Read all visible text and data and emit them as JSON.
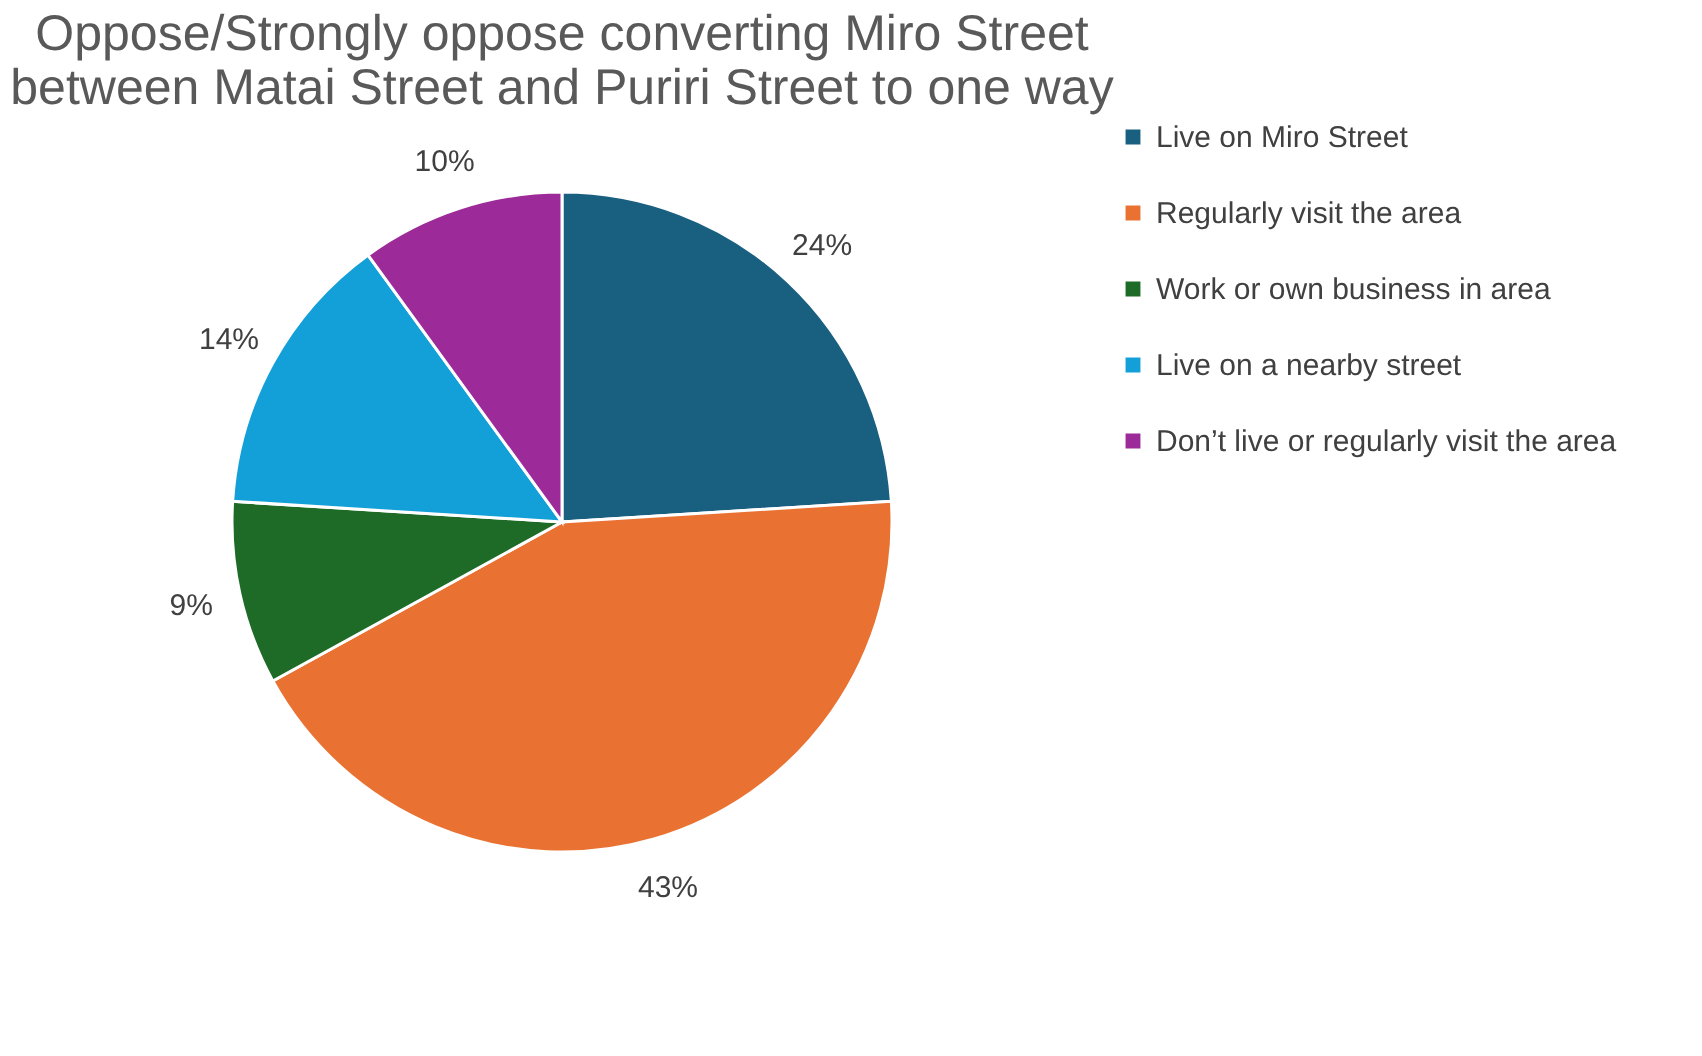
{
  "chart_data": {
    "type": "pie",
    "title": "Oppose/Strongly oppose converting Miro Street between Matai Street and Puriri Street to one way",
    "categories": [
      "Live on Miro Street",
      "Regularly visit the area",
      "Work or own business in area",
      "Live on a nearby street",
      "Don’t live or regularly visit the area"
    ],
    "values": [
      24,
      43,
      9,
      14,
      10
    ],
    "colors": [
      "#185f80",
      "#e97232",
      "#1e6b27",
      "#139fd8",
      "#9c2a98"
    ],
    "value_labels": [
      "24%",
      "43%",
      "9%",
      "14%",
      "10%"
    ],
    "legend": "right"
  }
}
